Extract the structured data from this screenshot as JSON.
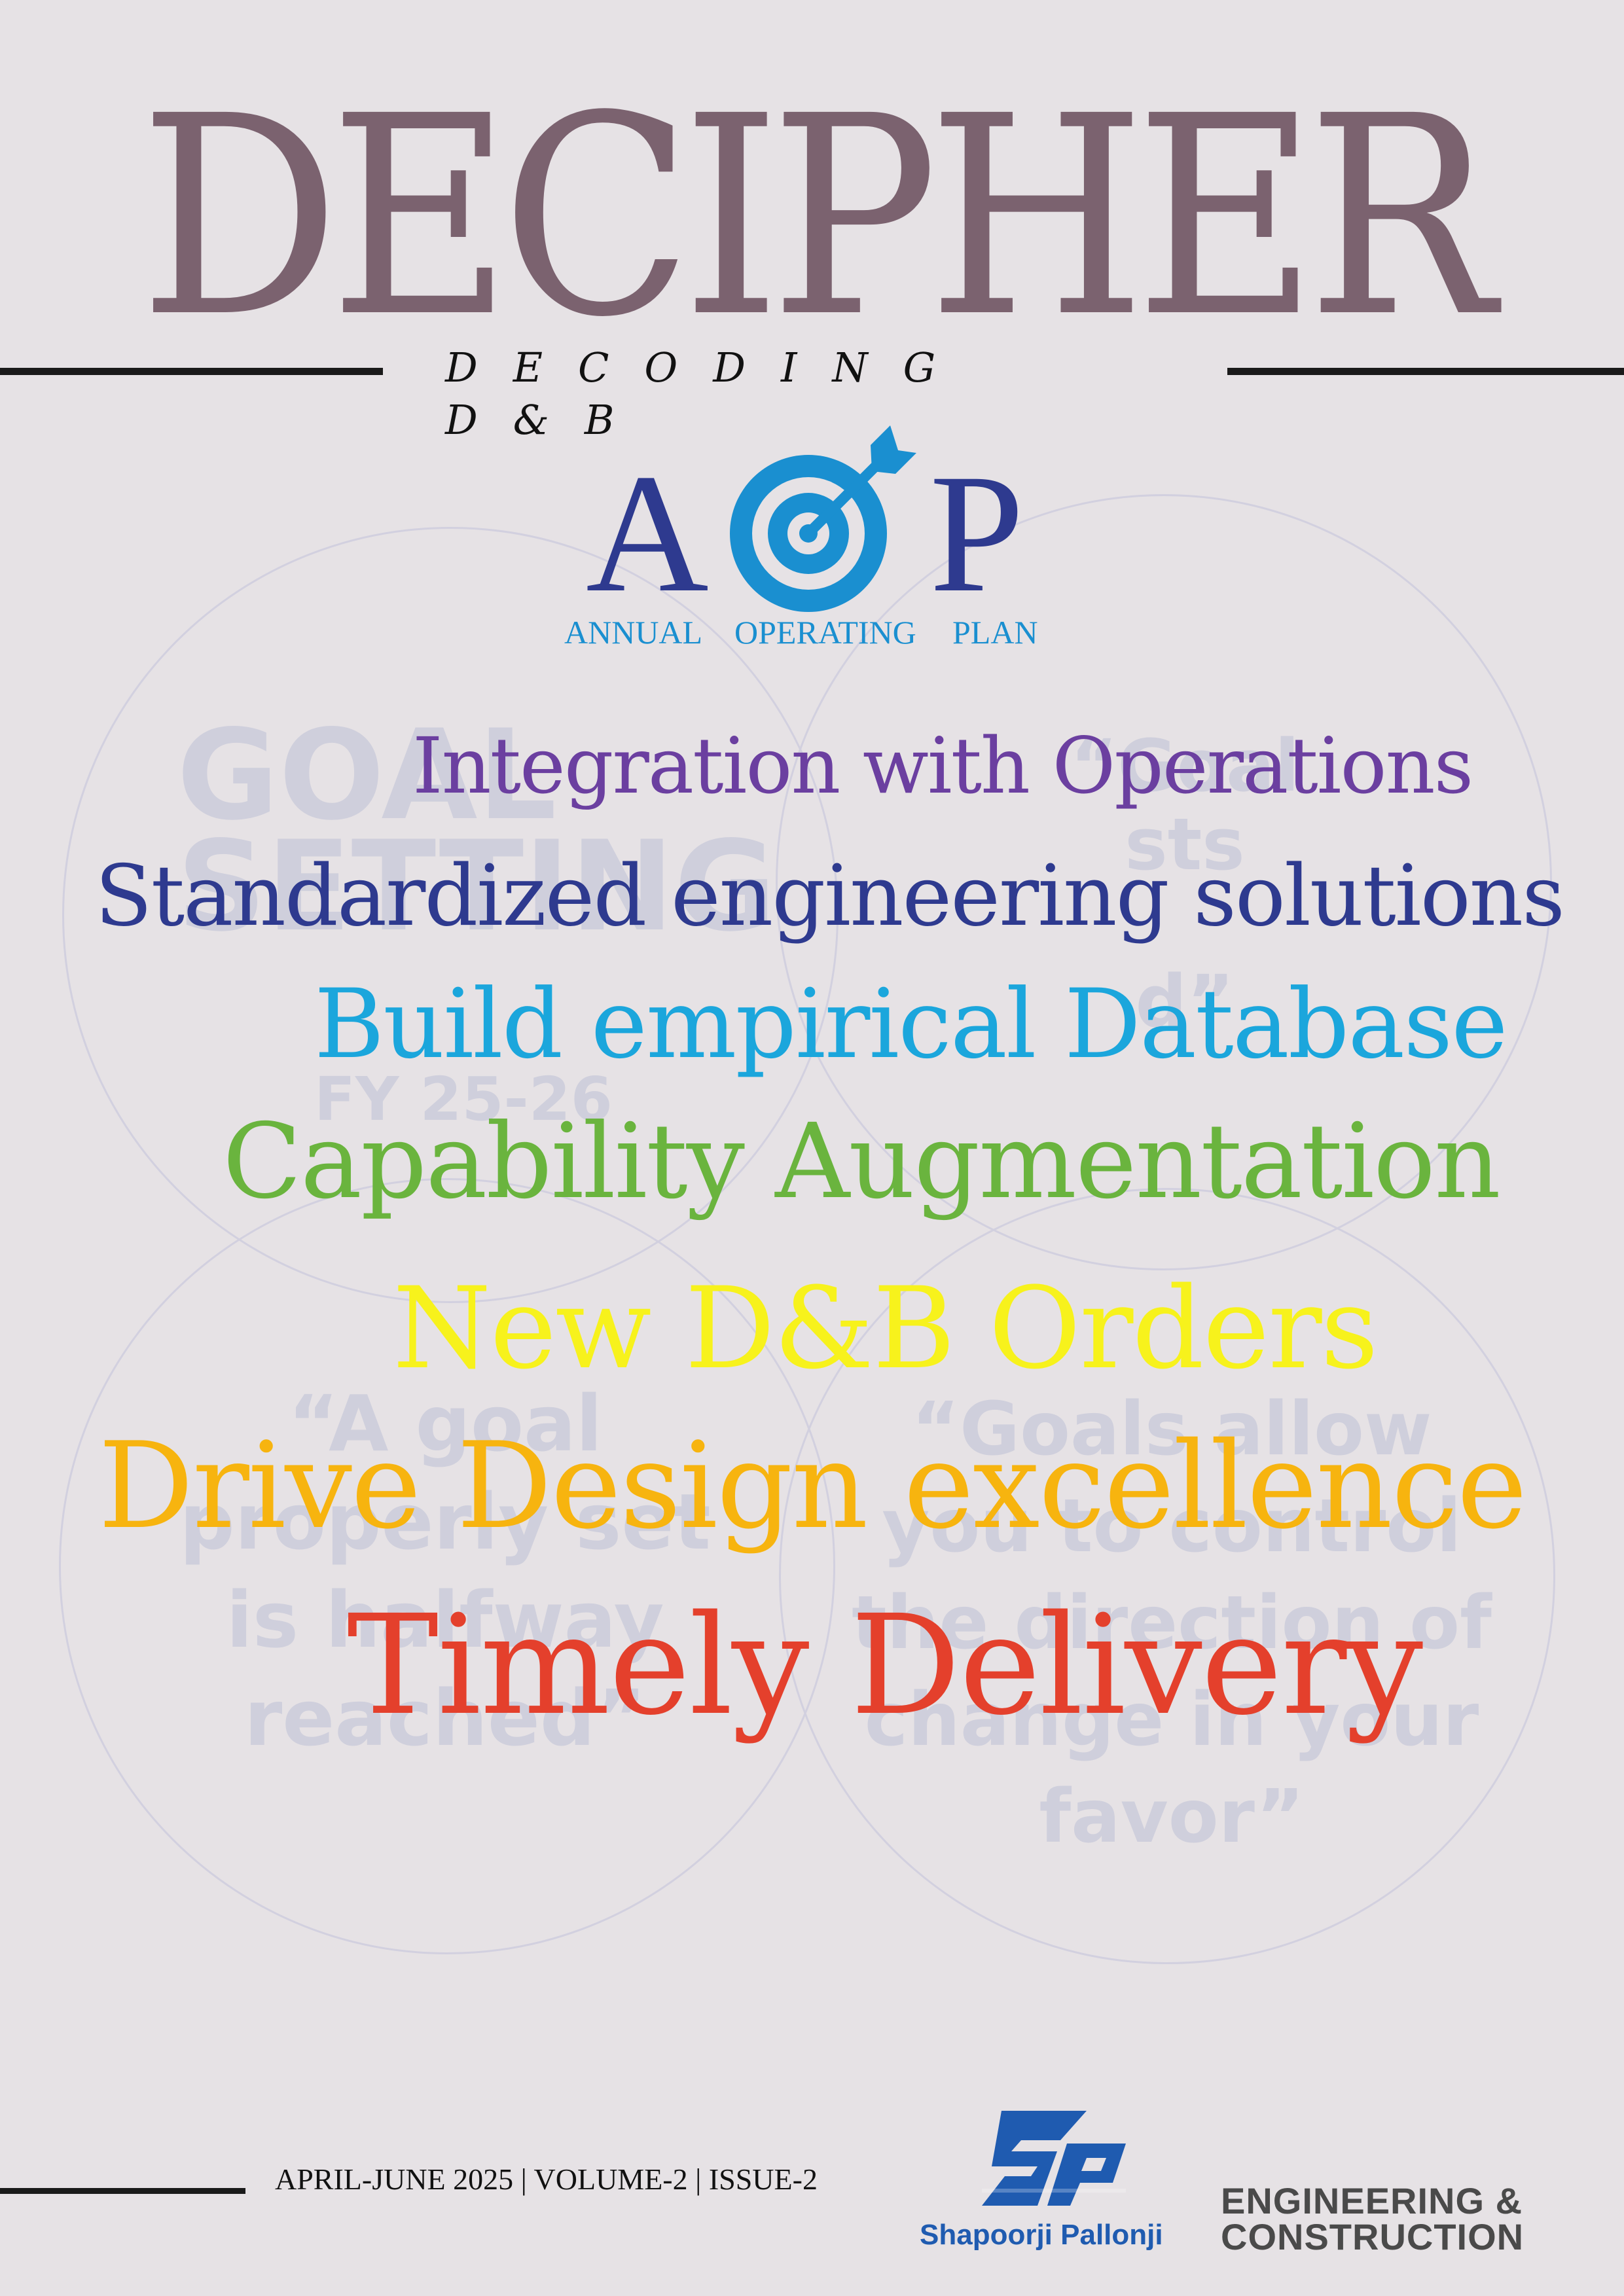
{
  "masthead": {
    "title": "DECIPHER",
    "tagline": "DECODING D&B",
    "title_color": "#7b626f"
  },
  "aop_logo": {
    "letter_a": "A",
    "letter_p": "P",
    "icon": "target-arrow-icon",
    "sub_words": [
      "ANNUAL",
      "OPERATING",
      "PLAN"
    ],
    "letter_color": "#2e3a8f",
    "icon_color": "#1a8fd0"
  },
  "background_watermarks": {
    "goal_title": "GOAL\nSETTING",
    "goal_year": "FY 25-26",
    "quote_top_right": "“Goal\nsts\n\nd”",
    "quote_left": "“A goal\nproperly set\nis halfway\nreached”",
    "quote_right": "“Goals allow\nyou to control\nthe direction of\nchange in your\nfavor”"
  },
  "headlines": [
    {
      "text": "Integration with Operations",
      "color": "#6b3fa0"
    },
    {
      "text": "Standardized  engineering solutions",
      "color": "#2e3a8f"
    },
    {
      "text": "Build empirical Database",
      "color": "#1ba6dc"
    },
    {
      "text": "Capability Augmentation",
      "color": "#6ab43e"
    },
    {
      "text": "New D&B Orders",
      "color": "#f7f21c"
    },
    {
      "text": "Drive Design excellence",
      "color": "#f7b40f"
    },
    {
      "text": "Timely Delivery",
      "color": "#e4402c"
    }
  ],
  "footer": {
    "issue_line": "APRIL-JUNE 2025 | VOLUME-2 | ISSUE-2",
    "brand_logo": "sp-logo-icon",
    "brand_name": "Shapoorji Pallonji",
    "division_line1": "ENGINEERING &",
    "division_line2": "CONSTRUCTION",
    "brand_color": "#1f5bb0"
  }
}
